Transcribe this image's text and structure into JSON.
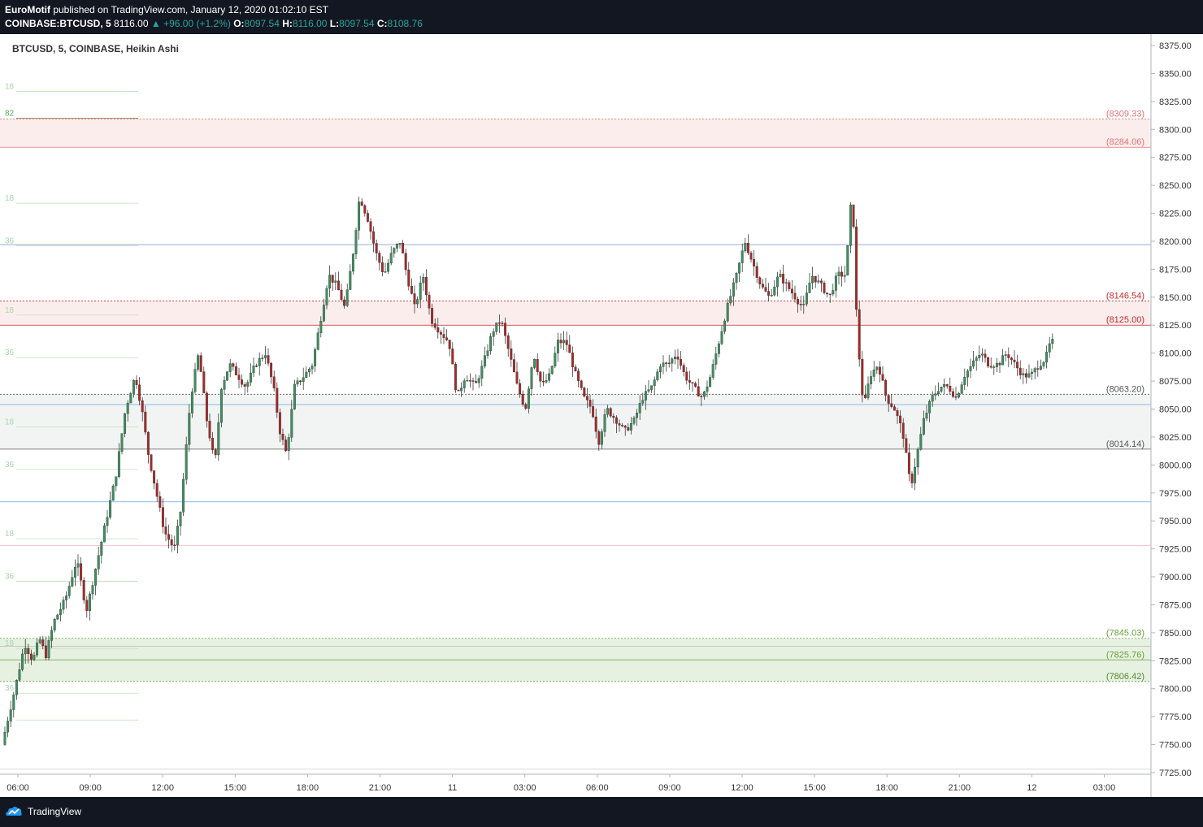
{
  "header": {
    "author": "EuroMotif",
    "published": " published on TradingView.com, January 12, 2020 01:02:10 EST",
    "symbol": "COINBASE:BTCUSD, 5",
    "price": "8116.00",
    "change": "+96.00 (+1.2%)",
    "o_label": "O:",
    "o": "8097.54",
    "h_label": "H:",
    "h": "8116.00",
    "l_label": "L:",
    "l": "8097.54",
    "c_label": "C:",
    "c": "8108.76"
  },
  "legend_title": "BTCUSD, 5, COINBASE, Heikin Ashi",
  "footer": {
    "brand": "TradingView"
  },
  "chart_data": {
    "type": "candlestick",
    "style": "heikin-ashi",
    "ylim": [
      7725,
      8385
    ],
    "y_ticks": [
      "7725.00",
      "7750.00",
      "7775.00",
      "7800.00",
      "7825.00",
      "7850.00",
      "7875.00",
      "7900.00",
      "7925.00",
      "7950.00",
      "7975.00",
      "8000.00",
      "8025.00",
      "8050.00",
      "8075.00",
      "8100.00",
      "8125.00",
      "8150.00",
      "8175.00",
      "8200.00",
      "8225.00",
      "8250.00",
      "8275.00",
      "8300.00",
      "8325.00",
      "8350.00",
      "8375.00"
    ],
    "x_ticks": [
      "06:00",
      "09:00",
      "12:00",
      "15:00",
      "18:00",
      "21:00",
      "11",
      "03:00",
      "06:00",
      "09:00",
      "12:00",
      "15:00",
      "18:00",
      "21:00",
      "12",
      "03:00"
    ],
    "up_color": "#26a69a",
    "down_color": "#a52a2a",
    "left_labels": [
      "18",
      "82",
      "18",
      "36",
      "18",
      "36",
      "18",
      "36",
      "18",
      "36",
      "18",
      "36"
    ],
    "zones": [
      {
        "from": 8284.06,
        "to": 8309.33,
        "color": "#f8d7d7"
      },
      {
        "from": 8125.0,
        "to": 8146.54,
        "color": "#f8d7d7"
      },
      {
        "from": 8014.14,
        "to": 8063.2,
        "color": "#e3e7e7"
      },
      {
        "from": 7806.42,
        "to": 7845.03,
        "color": "#c7e1bd"
      }
    ],
    "levels": [
      {
        "price": 8309.33,
        "label": "(8309.33)",
        "color": "#e57373"
      },
      {
        "price": 8284.06,
        "label": "(8284.06)",
        "color": "#e57373"
      },
      {
        "price": 8146.54,
        "label": "(8146.54)",
        "color": "#c62828"
      },
      {
        "price": 8125.0,
        "label": "(8125.00)",
        "color": "#c62828"
      },
      {
        "price": 8063.2,
        "label": "(8063.20)",
        "color": "#555555"
      },
      {
        "price": 8014.14,
        "label": "(8014.14)",
        "color": "#555555"
      },
      {
        "price": 7845.03,
        "label": "(7845.03)",
        "color": "#689f38"
      },
      {
        "price": 7825.76,
        "label": "(7825.76)",
        "color": "#689f38"
      },
      {
        "price": 7806.42,
        "label": "(7806.42)",
        "color": "#558b2f"
      }
    ],
    "path": [
      [
        0,
        7735
      ],
      [
        6,
        7750
      ],
      [
        22,
        7800
      ],
      [
        34,
        7840
      ],
      [
        44,
        7825
      ],
      [
        52,
        7845
      ],
      [
        60,
        7830
      ],
      [
        70,
        7860
      ],
      [
        84,
        7880
      ],
      [
        98,
        7915
      ],
      [
        110,
        7870
      ],
      [
        122,
        7910
      ],
      [
        134,
        7950
      ],
      [
        146,
        7990
      ],
      [
        158,
        8050
      ],
      [
        170,
        8080
      ],
      [
        178,
        8050
      ],
      [
        186,
        8010
      ],
      [
        196,
        7975
      ],
      [
        206,
        7940
      ],
      [
        218,
        7925
      ],
      [
        226,
        7960
      ],
      [
        238,
        8060
      ],
      [
        248,
        8100
      ],
      [
        258,
        8040
      ],
      [
        268,
        8000
      ],
      [
        276,
        8070
      ],
      [
        286,
        8090
      ],
      [
        296,
        8080
      ],
      [
        306,
        8070
      ],
      [
        318,
        8090
      ],
      [
        330,
        8100
      ],
      [
        340,
        8070
      ],
      [
        348,
        8030
      ],
      [
        356,
        8010
      ],
      [
        366,
        8070
      ],
      [
        378,
        8080
      ],
      [
        388,
        8090
      ],
      [
        398,
        8130
      ],
      [
        408,
        8170
      ],
      [
        418,
        8160
      ],
      [
        428,
        8140
      ],
      [
        438,
        8190
      ],
      [
        446,
        8240
      ],
      [
        456,
        8220
      ],
      [
        466,
        8190
      ],
      [
        476,
        8170
      ],
      [
        486,
        8190
      ],
      [
        496,
        8200
      ],
      [
        504,
        8170
      ],
      [
        514,
        8140
      ],
      [
        524,
        8170
      ],
      [
        534,
        8130
      ],
      [
        544,
        8120
      ],
      [
        556,
        8110
      ],
      [
        566,
        8060
      ],
      [
        576,
        8080
      ],
      [
        588,
        8070
      ],
      [
        598,
        8090
      ],
      [
        610,
        8120
      ],
      [
        620,
        8130
      ],
      [
        630,
        8100
      ],
      [
        640,
        8070
      ],
      [
        650,
        8050
      ],
      [
        660,
        8100
      ],
      [
        670,
        8070
      ],
      [
        680,
        8080
      ],
      [
        690,
        8110
      ],
      [
        700,
        8110
      ],
      [
        712,
        8080
      ],
      [
        722,
        8060
      ],
      [
        732,
        8050
      ],
      [
        740,
        8020
      ],
      [
        750,
        8050
      ],
      [
        762,
        8040
      ],
      [
        772,
        8030
      ],
      [
        784,
        8040
      ],
      [
        794,
        8060
      ],
      [
        806,
        8070
      ],
      [
        816,
        8090
      ],
      [
        826,
        8090
      ],
      [
        836,
        8100
      ],
      [
        846,
        8080
      ],
      [
        856,
        8070
      ],
      [
        868,
        8060
      ],
      [
        878,
        8080
      ],
      [
        888,
        8110
      ],
      [
        898,
        8140
      ],
      [
        910,
        8170
      ],
      [
        920,
        8200
      ],
      [
        930,
        8180
      ],
      [
        940,
        8160
      ],
      [
        950,
        8150
      ],
      [
        962,
        8170
      ],
      [
        972,
        8160
      ],
      [
        982,
        8150
      ],
      [
        992,
        8140
      ],
      [
        1002,
        8170
      ],
      [
        1014,
        8160
      ],
      [
        1024,
        8150
      ],
      [
        1034,
        8170
      ],
      [
        1044,
        8170
      ],
      [
        1052,
        8250
      ],
      [
        1058,
        8120
      ],
      [
        1066,
        8050
      ],
      [
        1074,
        8080
      ],
      [
        1084,
        8090
      ],
      [
        1094,
        8060
      ],
      [
        1104,
        8050
      ],
      [
        1114,
        8030
      ],
      [
        1124,
        7980
      ],
      [
        1132,
        8010
      ],
      [
        1140,
        8040
      ],
      [
        1150,
        8060
      ],
      [
        1160,
        8070
      ],
      [
        1170,
        8070
      ],
      [
        1180,
        8060
      ],
      [
        1190,
        8080
      ],
      [
        1200,
        8090
      ],
      [
        1210,
        8100
      ],
      [
        1220,
        8090
      ],
      [
        1232,
        8090
      ],
      [
        1242,
        8100
      ],
      [
        1252,
        8090
      ],
      [
        1262,
        8080
      ],
      [
        1272,
        8080
      ],
      [
        1282,
        8090
      ],
      [
        1290,
        8095
      ],
      [
        1296,
        8110
      ]
    ]
  }
}
